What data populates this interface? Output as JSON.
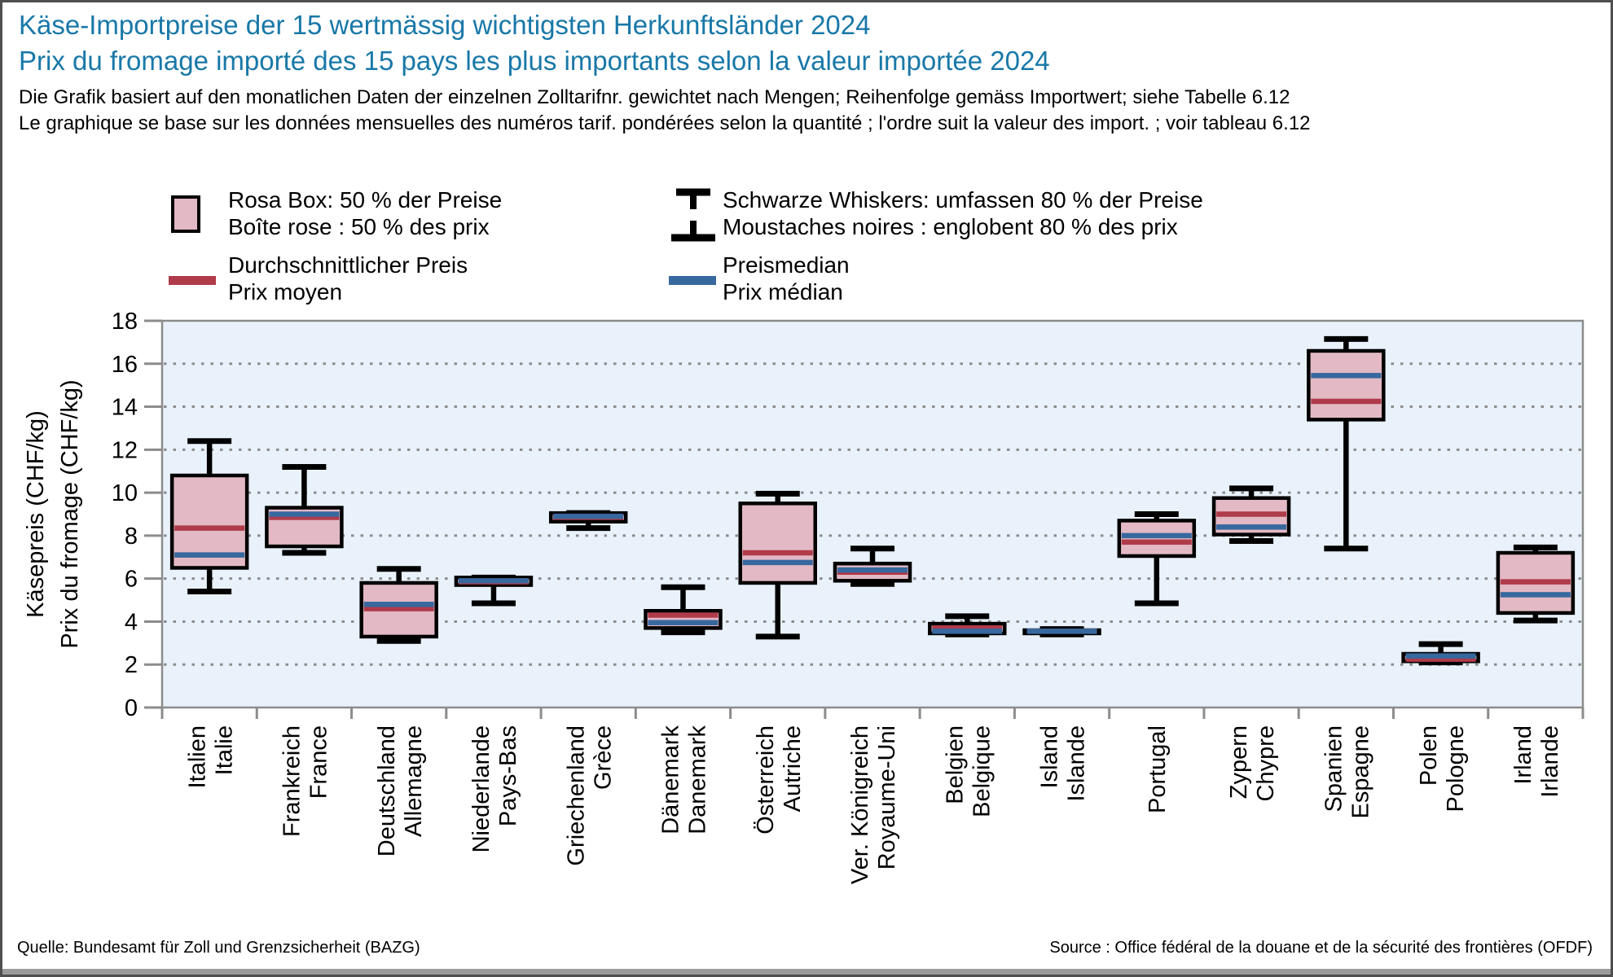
{
  "header": {
    "title_de": "Käse-Importpreise der 15 wertmässig wichtigsten Herkunftsländer 2024",
    "title_fr": "Prix du fromage importé des 15 pays les plus importants selon la valeur importée 2024",
    "subtitle_de": "Die Grafik basiert auf den monatlichen Daten der einzelnen Zolltarifnr. gewichtet nach Mengen; Reihenfolge gemäss Importwert; siehe Tabelle 6.12",
    "subtitle_fr": "Le graphique se base sur les données mensuelles des numéros tarif. pondérées selon la quantité ; l'ordre suit la valeur des import. ; voir tableau 6.12"
  },
  "legend": {
    "box": {
      "label_de": "Rosa Box: 50 % der Preise",
      "label_fr": "Boîte rose : 50 % des prix"
    },
    "whiskers": {
      "label_de": "Schwarze Whiskers: umfassen 80 % der Preise",
      "label_fr": "Moustaches noires : englobent 80 % des prix"
    },
    "mean": {
      "label_de": "Durchschnittlicher Preis",
      "label_fr": "Prix moyen"
    },
    "median": {
      "label_de": "Preismedian",
      "label_fr": "Prix médian"
    }
  },
  "colors": {
    "title_blue": "#1878a8",
    "plot_background": "#e9f2fb",
    "grid_gray": "#8c8c8c",
    "box_fill": "#e2b9c4",
    "box_stroke": "#000000",
    "mean_red": "#b03b4a",
    "median_blue": "#37689e"
  },
  "chart_data": {
    "type": "boxplot",
    "ylabel_de": "Käsepreis (CHF/kg)",
    "ylabel_fr": "Prix du fromage (CHF/kg)",
    "ylim": [
      0,
      18
    ],
    "yticks": [
      0,
      2,
      4,
      6,
      8,
      10,
      12,
      14,
      16,
      18
    ],
    "grid": "horizontal-dotted",
    "legend_position": "top",
    "boxes": [
      {
        "country_de": "Italien",
        "country_fr": "Italie",
        "whisker_low": 5.4,
        "q1": 6.5,
        "median": 7.1,
        "mean": 8.35,
        "q3": 10.8,
        "whisker_high": 12.4
      },
      {
        "country_de": "Frankreich",
        "country_fr": "France",
        "whisker_low": 7.2,
        "q1": 7.5,
        "median": 9.0,
        "mean": 8.85,
        "q3": 9.3,
        "whisker_high": 11.2
      },
      {
        "country_de": "Deutschland",
        "country_fr": "Allemagne",
        "whisker_low": 3.1,
        "q1": 3.3,
        "median": 4.8,
        "mean": 4.6,
        "q3": 5.8,
        "whisker_high": 6.45
      },
      {
        "country_de": "Niederlande",
        "country_fr": "Pays-Bas",
        "whisker_low": 4.85,
        "q1": 5.7,
        "median": 5.9,
        "mean": 5.85,
        "q3": 6.05,
        "whisker_high": 6.05
      },
      {
        "country_de": "Griechenland",
        "country_fr": "Grèce",
        "whisker_low": 8.35,
        "q1": 8.65,
        "median": 8.9,
        "mean": 8.85,
        "q3": 9.05,
        "whisker_high": 9.05
      },
      {
        "country_de": "Dänemark",
        "country_fr": "Danemark",
        "whisker_low": 3.5,
        "q1": 3.7,
        "median": 3.95,
        "mean": 4.3,
        "q3": 4.5,
        "whisker_high": 5.6
      },
      {
        "country_de": "Österreich",
        "country_fr": "Autriche",
        "whisker_low": 3.3,
        "q1": 5.8,
        "median": 6.75,
        "mean": 7.2,
        "q3": 9.5,
        "whisker_high": 9.95
      },
      {
        "country_de": "Ver. Königreich",
        "country_fr": "Royaume-Uni",
        "whisker_low": 5.75,
        "q1": 5.9,
        "median": 6.4,
        "mean": 6.3,
        "q3": 6.7,
        "whisker_high": 7.4
      },
      {
        "country_de": "Belgien",
        "country_fr": "Belgique",
        "whisker_low": 3.4,
        "q1": 3.45,
        "median": 3.55,
        "mean": 3.7,
        "q3": 3.9,
        "whisker_high": 4.25
      },
      {
        "country_de": "Island",
        "country_fr": "Islande",
        "whisker_low": 3.4,
        "q1": 3.45,
        "median": 3.55,
        "mean": 3.55,
        "q3": 3.6,
        "whisker_high": 3.65
      },
      {
        "country_de": "Portugal",
        "country_fr": "",
        "whisker_low": 4.85,
        "q1": 7.05,
        "median": 8.0,
        "mean": 7.7,
        "q3": 8.7,
        "whisker_high": 9.0
      },
      {
        "country_de": "Zypern",
        "country_fr": "Chypre",
        "whisker_low": 7.75,
        "q1": 8.05,
        "median": 8.4,
        "mean": 9.0,
        "q3": 9.75,
        "whisker_high": 10.2
      },
      {
        "country_de": "Spanien",
        "country_fr": "Espagne",
        "whisker_low": 7.4,
        "q1": 13.4,
        "median": 15.45,
        "mean": 14.25,
        "q3": 16.6,
        "whisker_high": 17.15
      },
      {
        "country_de": "Polen",
        "country_fr": "Pologne",
        "whisker_low": 2.1,
        "q1": 2.15,
        "median": 2.4,
        "mean": 2.25,
        "q3": 2.5,
        "whisker_high": 2.95
      },
      {
        "country_de": "Irland",
        "country_fr": "Irlande",
        "whisker_low": 4.05,
        "q1": 4.4,
        "median": 5.25,
        "mean": 5.85,
        "q3": 7.2,
        "whisker_high": 7.45
      }
    ]
  },
  "footer": {
    "source_de": "Quelle: Bundesamt für Zoll und Grenzsicherheit (BAZG)",
    "source_fr": "Source : Office fédéral de la douane et de la sécurité des frontières (OFDF)"
  }
}
